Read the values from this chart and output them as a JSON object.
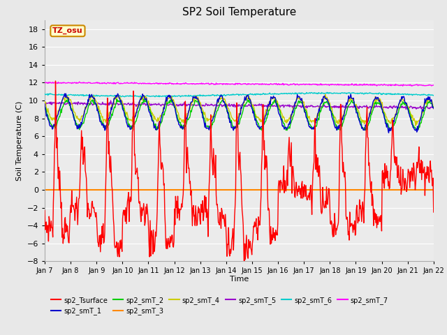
{
  "title": "SP2 Soil Temperature",
  "xlabel": "Time",
  "ylabel": "Soil Temperature (C)",
  "ylim": [
    -8,
    19
  ],
  "yticks": [
    -8,
    -6,
    -4,
    -2,
    0,
    2,
    4,
    6,
    8,
    10,
    12,
    14,
    16,
    18
  ],
  "legend_labels": [
    "sp2_Tsurface",
    "sp2_smT_1",
    "sp2_smT_2",
    "sp2_smT_3",
    "sp2_smT_4",
    "sp2_smT_5",
    "sp2_smT_6",
    "sp2_smT_7"
  ],
  "legend_colors": [
    "#ff0000",
    "#0000cc",
    "#00cc00",
    "#ff8800",
    "#cccc00",
    "#9900cc",
    "#00cccc",
    "#ff00ff"
  ],
  "tz_label": "TZ_osu",
  "background_color": "#e8e8e8",
  "plot_background": "#ebebeb",
  "grid_color": "#ffffff",
  "x_start": 7,
  "x_end": 22,
  "x_ticks": [
    7,
    8,
    9,
    10,
    11,
    12,
    13,
    14,
    15,
    16,
    17,
    18,
    19,
    20,
    21,
    22
  ],
  "x_tick_labels": [
    "Jan 7",
    "Jan 8",
    "Jan 9",
    "Jan 10",
    "Jan 11",
    "Jan 12",
    "Jan 13",
    "Jan 14",
    "Jan 15",
    "Jan 16",
    "Jan 17",
    "Jan 18",
    "Jan 19",
    "Jan 20",
    "Jan 21",
    "Jan 22"
  ]
}
